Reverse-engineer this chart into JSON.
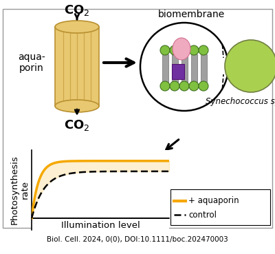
{
  "bg_color": "#ffffff",
  "title_text": "Biol. Cell. 2024, 0(0), DOI:10.1111/boc.202470003",
  "biomembrane_label": "biomembrane",
  "aquaporin_label": "aqua-\nporin",
  "co2_top": "CO$_2$",
  "co2_bottom": "CO$_2$",
  "synechococcus_label": "Synechococcus sp.",
  "photosynthesis_ylabel": "Photosynthesis\nrate",
  "illumination_xlabel": "Illumination level",
  "legend_aquaporin": "+ aquaporin",
  "legend_control": "control",
  "aquaporin_color": "#f5a800",
  "control_color": "#000000",
  "cylinder_fill": "#e8c870",
  "cylinder_edge": "#b89030",
  "cylinder_stripe": "#c8a040",
  "cell_green_fill": "#aad050",
  "cell_green_edge": "#708040",
  "membrane_gray": "#909090",
  "pink_fill": "#f0aac0",
  "pink_edge": "#d07090",
  "purple_fill": "#7030a0",
  "purple_edge": "#501070",
  "green_circle_fill": "#80c040",
  "green_circle_edge": "#407020",
  "box_edge": "#999999"
}
